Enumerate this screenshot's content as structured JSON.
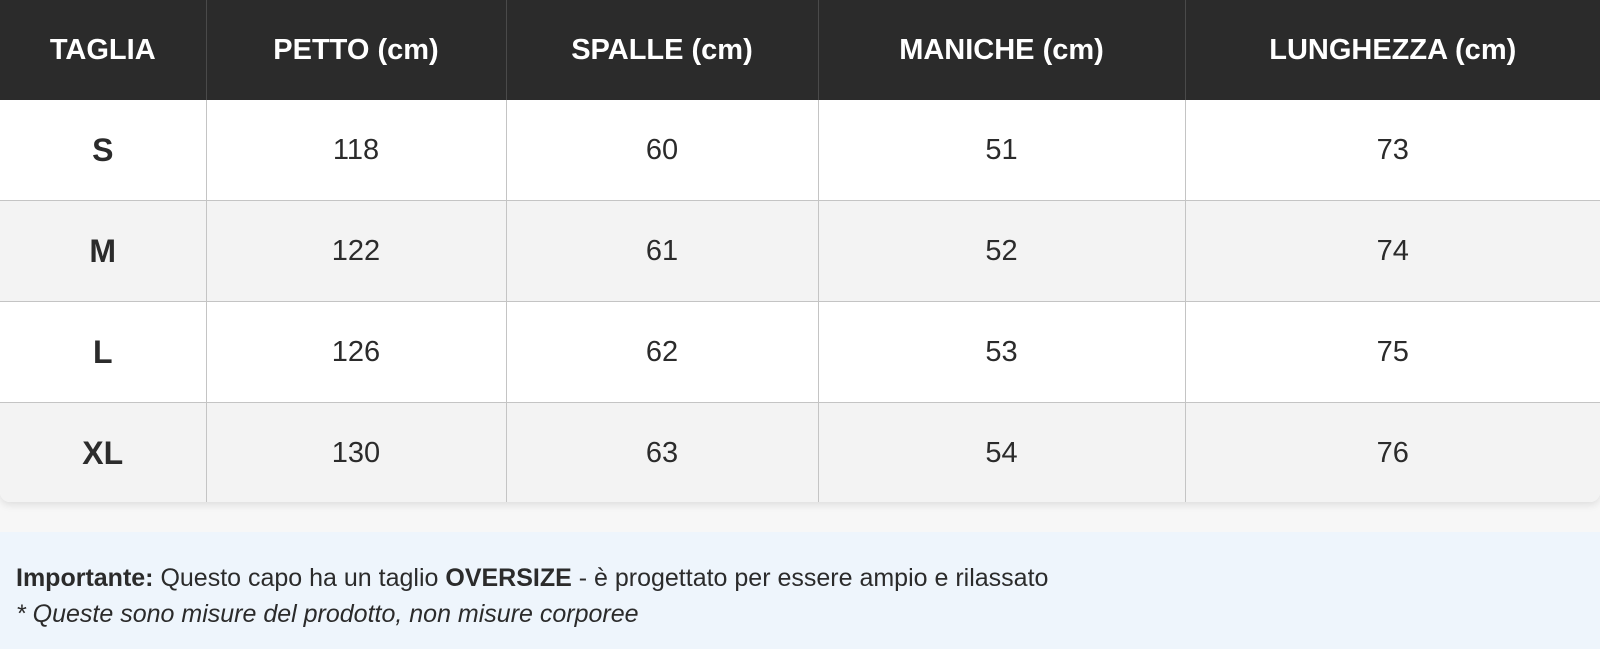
{
  "table": {
    "headers": [
      "TAGLIA",
      "PETTO (cm)",
      "SPALLE (cm)",
      "MANICHE (cm)",
      "LUNGHEZZA (cm)"
    ],
    "rows": [
      [
        "S",
        "118",
        "60",
        "51",
        "73"
      ],
      [
        "M",
        "122",
        "61",
        "52",
        "74"
      ],
      [
        "L",
        "126",
        "62",
        "53",
        "75"
      ],
      [
        "XL",
        "130",
        "63",
        "54",
        "76"
      ]
    ]
  },
  "note": {
    "label": "Importante:",
    "text_before": " Questo capo ha un taglio ",
    "highlight": "OVERSIZE",
    "text_after": " - è progettato per essere ampio e rilassato",
    "disclaimer": "* Queste sono misure del prodotto, non misure corporee"
  }
}
